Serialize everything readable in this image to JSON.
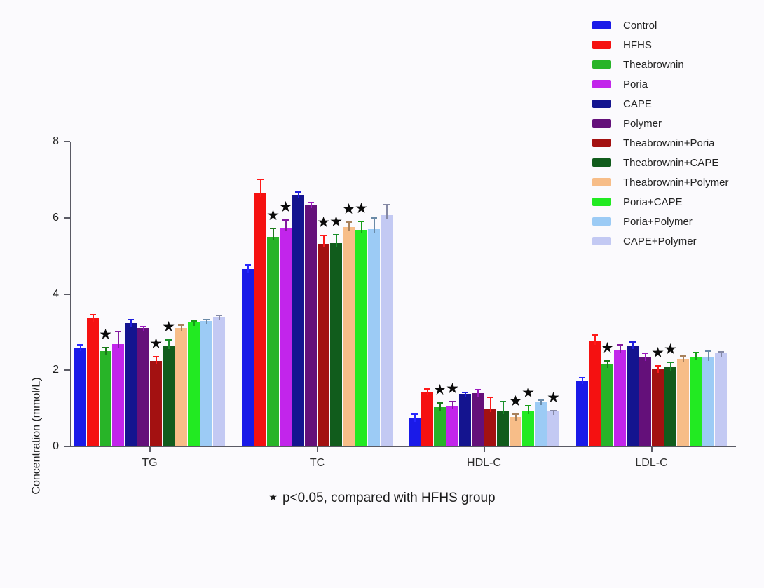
{
  "chart_data": {
    "type": "bar",
    "title": "",
    "xlabel": "",
    "ylabel": "Concentration (mmol/L)",
    "ylim": [
      0,
      8
    ],
    "yticks": [
      0,
      2,
      4,
      6,
      8
    ],
    "grid": false,
    "legend_position": "top-right",
    "categories": [
      "TG",
      "TC",
      "HDL-C",
      "LDL-C"
    ],
    "series": [
      {
        "name": "Control",
        "color": "#1a1ae8",
        "values": [
          2.6,
          4.65,
          0.74,
          1.73
        ],
        "errors": [
          0.08,
          0.13,
          0.12,
          0.1
        ],
        "significant": [
          false,
          false,
          false,
          false
        ]
      },
      {
        "name": "HFHS",
        "color": "#f51111",
        "values": [
          3.36,
          6.64,
          1.44,
          2.75
        ],
        "errors": [
          0.12,
          0.38,
          0.08,
          0.2
        ],
        "significant": [
          false,
          false,
          false,
          false
        ]
      },
      {
        "name": "Theabrownin",
        "color": "#28b428",
        "values": [
          2.51,
          5.49,
          1.03,
          2.16
        ],
        "errors": [
          0.1,
          0.25,
          0.12,
          0.1
        ],
        "significant": [
          true,
          true,
          true,
          true
        ]
      },
      {
        "name": "Poria",
        "color": "#c225eb",
        "values": [
          2.69,
          5.73,
          1.07,
          2.54
        ],
        "errors": [
          0.35,
          0.22,
          0.12,
          0.15
        ],
        "significant": [
          false,
          true,
          true,
          false
        ]
      },
      {
        "name": "CAPE",
        "color": "#14148f",
        "values": [
          3.23,
          6.6,
          1.38,
          2.64
        ],
        "errors": [
          0.12,
          0.1,
          0.05,
          0.12
        ],
        "significant": [
          false,
          false,
          false,
          false
        ]
      },
      {
        "name": "Polymer",
        "color": "#64107a",
        "values": [
          3.1,
          6.34,
          1.4,
          2.34
        ],
        "errors": [
          0.06,
          0.08,
          0.1,
          0.12
        ],
        "significant": [
          false,
          false,
          false,
          false
        ]
      },
      {
        "name": "Theabrownin+Poria",
        "color": "#a31111",
        "values": [
          2.25,
          5.31,
          1.0,
          2.03
        ],
        "errors": [
          0.13,
          0.25,
          0.3,
          0.1
        ],
        "significant": [
          true,
          true,
          false,
          true
        ]
      },
      {
        "name": "Theabrownin+CAPE",
        "color": "#115c1c",
        "values": [
          2.64,
          5.33,
          0.94,
          2.08
        ],
        "errors": [
          0.18,
          0.25,
          0.25,
          0.15
        ],
        "significant": [
          true,
          true,
          false,
          true
        ]
      },
      {
        "name": "Theabrownin+Polymer",
        "color": "#f7bd88",
        "values": [
          3.1,
          5.75,
          0.77,
          2.29
        ],
        "errors": [
          0.1,
          0.15,
          0.1,
          0.1
        ],
        "significant": [
          false,
          true,
          true,
          false
        ]
      },
      {
        "name": "Poria+CAPE",
        "color": "#22ea22",
        "values": [
          3.26,
          5.68,
          0.94,
          2.36
        ],
        "errors": [
          0.05,
          0.25,
          0.15,
          0.12
        ],
        "significant": [
          false,
          true,
          true,
          false
        ]
      },
      {
        "name": "Poria+Polymer",
        "color": "#9ccbf5",
        "values": [
          3.3,
          5.71,
          1.18,
          2.34
        ],
        "errors": [
          0.05,
          0.3,
          0.05,
          0.18
        ],
        "significant": [
          false,
          false,
          false,
          false
        ]
      },
      {
        "name": "CAPE+Polymer",
        "color": "#c3c9f3",
        "values": [
          3.41,
          6.07,
          0.92,
          2.45
        ],
        "errors": [
          0.04,
          0.3,
          0.03,
          0.06
        ],
        "significant": [
          false,
          false,
          true,
          false
        ]
      }
    ],
    "significance_note": {
      "marker": "★",
      "text": "p<0.05, compared with HFHS group"
    }
  }
}
